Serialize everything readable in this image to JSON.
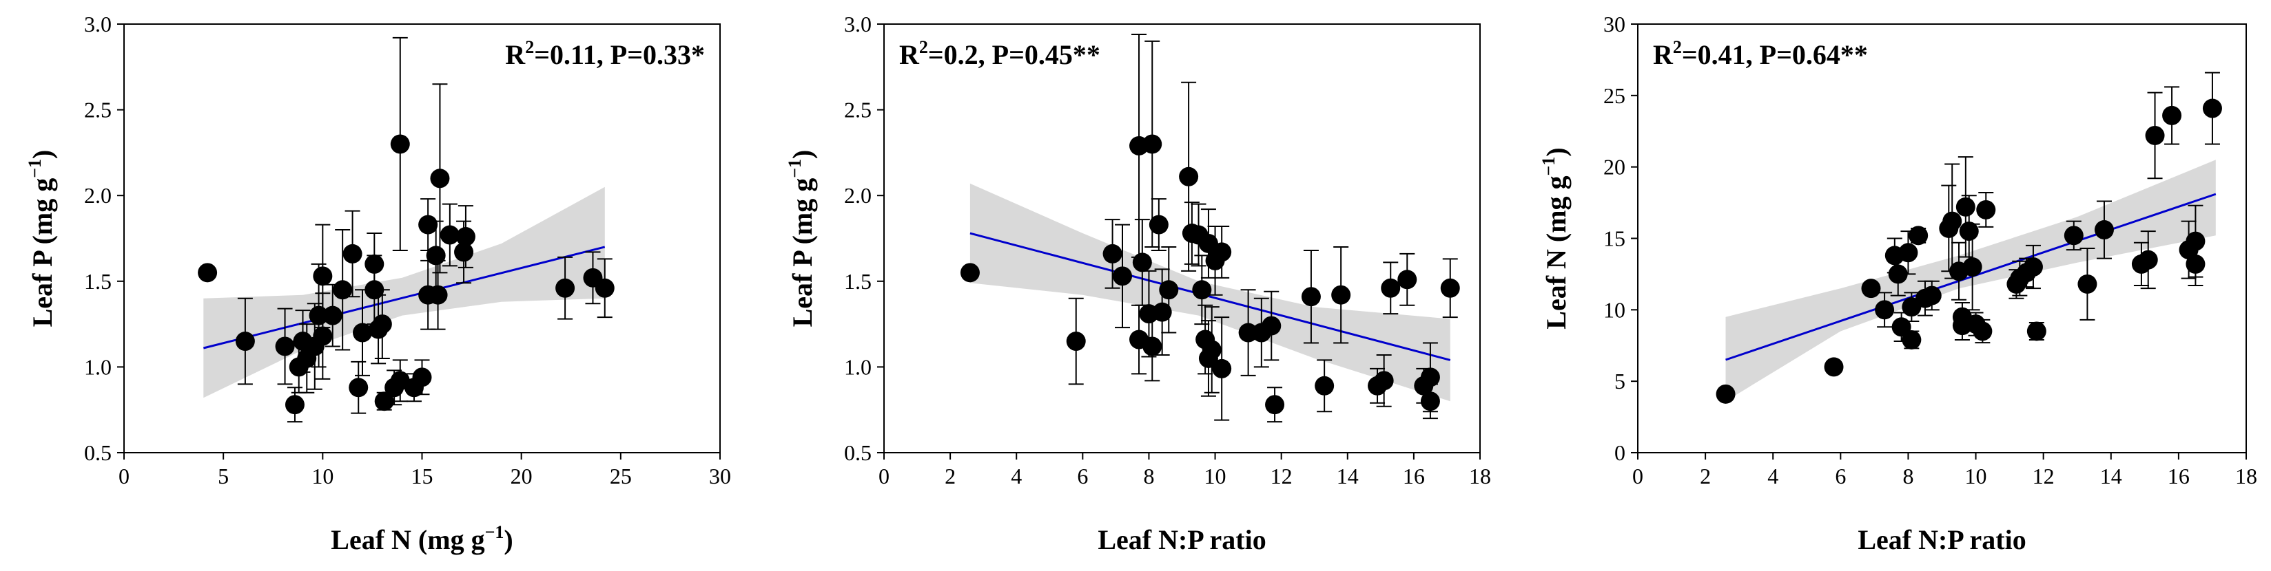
{
  "colors": {
    "point": "#000000",
    "fit_line": "#0000cc",
    "confidence_band": "#d9d9d9",
    "axis": "#000000"
  },
  "chart_data": [
    {
      "type": "scatter",
      "id": "leafN-vs-leafP",
      "xlabel_main": "Leaf N (mg g",
      "xlabel_sup": "−1",
      "xlabel_end": ")",
      "ylabel_main": "Leaf P (mg g",
      "ylabel_sup": "−1",
      "ylabel_end": ")",
      "stat": {
        "r_prefix": "R",
        "r_sup": "2",
        "text": "=0.11, P=0.33*",
        "position": "top-right"
      },
      "xlim": [
        0,
        30
      ],
      "ylim": [
        0.5,
        3.0
      ],
      "xticks": [
        0,
        5,
        10,
        15,
        20,
        25,
        30
      ],
      "yticks": [
        0.5,
        1.0,
        1.5,
        2.0,
        2.5,
        3.0
      ],
      "xtick_labels": [
        "0",
        "5",
        "10",
        "15",
        "20",
        "25",
        "30"
      ],
      "ytick_labels": [
        "0.5",
        "1.0",
        "1.5",
        "2.0",
        "2.5",
        "3.0"
      ],
      "fit": {
        "x": [
          4.0,
          24.2
        ],
        "y": [
          1.11,
          1.7
        ]
      },
      "band": {
        "x": [
          4.0,
          9.0,
          14.0,
          19.0,
          24.2
        ],
        "upper": [
          1.4,
          1.42,
          1.52,
          1.72,
          2.05
        ],
        "lower": [
          0.82,
          1.1,
          1.3,
          1.38,
          1.4
        ]
      },
      "points": [
        {
          "x": 4.2,
          "y": 1.55,
          "err": 0
        },
        {
          "x": 6.1,
          "y": 1.15,
          "err": 0.25
        },
        {
          "x": 8.1,
          "y": 1.12,
          "err": 0.22
        },
        {
          "x": 8.6,
          "y": 0.78,
          "err": 0.1
        },
        {
          "x": 8.8,
          "y": 1.0,
          "err": 0.15
        },
        {
          "x": 9.0,
          "y": 1.15,
          "err": 0.18
        },
        {
          "x": 9.2,
          "y": 1.05,
          "err": 0.2
        },
        {
          "x": 9.6,
          "y": 1.12,
          "err": 0.25
        },
        {
          "x": 9.8,
          "y": 1.3,
          "err": 0.3
        },
        {
          "x": 10.0,
          "y": 1.53,
          "err": 0.3
        },
        {
          "x": 10.0,
          "y": 1.18,
          "err": 0.25
        },
        {
          "x": 10.5,
          "y": 1.3,
          "err": 0.18
        },
        {
          "x": 11.0,
          "y": 1.45,
          "err": 0.35
        },
        {
          "x": 11.5,
          "y": 1.66,
          "err": 0.25
        },
        {
          "x": 11.8,
          "y": 0.88,
          "err": 0.15
        },
        {
          "x": 12.0,
          "y": 1.2,
          "err": 0.25
        },
        {
          "x": 12.6,
          "y": 1.6,
          "err": 0.18
        },
        {
          "x": 12.6,
          "y": 1.45,
          "err": 0.2
        },
        {
          "x": 12.8,
          "y": 1.22,
          "err": 0.2
        },
        {
          "x": 13.0,
          "y": 1.25,
          "err": 0.2
        },
        {
          "x": 13.1,
          "y": 0.8,
          "err": 0.05
        },
        {
          "x": 13.6,
          "y": 0.88,
          "err": 0.1
        },
        {
          "x": 13.9,
          "y": 2.3,
          "err": 0.62
        },
        {
          "x": 13.9,
          "y": 0.92,
          "err": 0.12
        },
        {
          "x": 14.6,
          "y": 0.88,
          "err": 0.08
        },
        {
          "x": 15.0,
          "y": 0.94,
          "err": 0.1
        },
        {
          "x": 15.3,
          "y": 1.83,
          "err": 0.15
        },
        {
          "x": 15.3,
          "y": 1.42,
          "err": 0.2
        },
        {
          "x": 15.7,
          "y": 1.65,
          "err": 0.2
        },
        {
          "x": 15.8,
          "y": 1.42,
          "err": 0.2
        },
        {
          "x": 15.9,
          "y": 2.1,
          "err": 0.55
        },
        {
          "x": 16.4,
          "y": 1.77,
          "err": 0.18
        },
        {
          "x": 17.2,
          "y": 1.76,
          "err": 0.18
        },
        {
          "x": 17.1,
          "y": 1.67,
          "err": 0.18
        },
        {
          "x": 22.2,
          "y": 1.46,
          "err": 0.18
        },
        {
          "x": 23.6,
          "y": 1.52,
          "err": 0.15
        },
        {
          "x": 24.2,
          "y": 1.46,
          "err": 0.17
        }
      ]
    },
    {
      "type": "scatter",
      "id": "np-ratio-vs-leafP",
      "xlabel_main": "Leaf N:P ratio",
      "xlabel_sup": "",
      "xlabel_end": "",
      "ylabel_main": "Leaf P (mg g",
      "ylabel_sup": "−1",
      "ylabel_end": ")",
      "stat": {
        "r_prefix": "R",
        "r_sup": "2",
        "text": "=0.2, P=0.45**",
        "position": "top-left"
      },
      "xlim": [
        0,
        18
      ],
      "ylim": [
        0.5,
        3.0
      ],
      "xticks": [
        0,
        2,
        4,
        6,
        8,
        10,
        12,
        14,
        16,
        18
      ],
      "yticks": [
        0.5,
        1.0,
        1.5,
        2.0,
        2.5,
        3.0
      ],
      "xtick_labels": [
        "0",
        "2",
        "4",
        "6",
        "8",
        "10",
        "12",
        "14",
        "16",
        "18"
      ],
      "ytick_labels": [
        "0.5",
        "1.0",
        "1.5",
        "2.0",
        "2.5",
        "3.0"
      ],
      "fit": {
        "x": [
          2.6,
          17.1
        ],
        "y": [
          1.78,
          1.04
        ]
      },
      "band": {
        "x": [
          2.6,
          6.0,
          9.5,
          13.0,
          17.1
        ],
        "upper": [
          2.07,
          1.78,
          1.5,
          1.35,
          1.28
        ],
        "lower": [
          1.49,
          1.42,
          1.3,
          1.05,
          0.8
        ]
      },
      "points": [
        {
          "x": 2.6,
          "y": 1.55,
          "err": 0
        },
        {
          "x": 5.8,
          "y": 1.15,
          "err": 0.25
        },
        {
          "x": 6.9,
          "y": 1.66,
          "err": 0.2
        },
        {
          "x": 7.2,
          "y": 1.53,
          "err": 0.3
        },
        {
          "x": 7.7,
          "y": 2.29,
          "err": 0.65
        },
        {
          "x": 7.7,
          "y": 1.16,
          "err": 0.2
        },
        {
          "x": 7.8,
          "y": 1.61,
          "err": 0.25
        },
        {
          "x": 8.0,
          "y": 1.31,
          "err": 0.25
        },
        {
          "x": 8.1,
          "y": 2.3,
          "err": 0.6
        },
        {
          "x": 8.1,
          "y": 1.12,
          "err": 0.2
        },
        {
          "x": 8.3,
          "y": 1.83,
          "err": 0.15
        },
        {
          "x": 8.4,
          "y": 1.32,
          "err": 0.25
        },
        {
          "x": 8.6,
          "y": 1.45,
          "err": 0.25
        },
        {
          "x": 9.2,
          "y": 2.11,
          "err": 0.55
        },
        {
          "x": 9.3,
          "y": 1.78,
          "err": 0.18
        },
        {
          "x": 9.5,
          "y": 1.77,
          "err": 0.18
        },
        {
          "x": 9.6,
          "y": 1.45,
          "err": 0.2
        },
        {
          "x": 9.7,
          "y": 1.16,
          "err": 0.2
        },
        {
          "x": 9.8,
          "y": 1.72,
          "err": 0.2
        },
        {
          "x": 9.8,
          "y": 1.05,
          "err": 0.22
        },
        {
          "x": 9.9,
          "y": 1.1,
          "err": 0.25
        },
        {
          "x": 10.0,
          "y": 1.62,
          "err": 0.2
        },
        {
          "x": 10.2,
          "y": 1.67,
          "err": 0.15
        },
        {
          "x": 10.2,
          "y": 0.99,
          "err": 0.3
        },
        {
          "x": 11.0,
          "y": 1.2,
          "err": 0.25
        },
        {
          "x": 11.4,
          "y": 1.2,
          "err": 0.2
        },
        {
          "x": 11.7,
          "y": 1.24,
          "err": 0.2
        },
        {
          "x": 11.8,
          "y": 0.78,
          "err": 0.1
        },
        {
          "x": 12.9,
          "y": 1.41,
          "err": 0.27
        },
        {
          "x": 13.3,
          "y": 0.89,
          "err": 0.15
        },
        {
          "x": 13.8,
          "y": 1.42,
          "err": 0.28
        },
        {
          "x": 14.9,
          "y": 0.89,
          "err": 0.1
        },
        {
          "x": 15.1,
          "y": 0.92,
          "err": 0.15
        },
        {
          "x": 15.3,
          "y": 1.46,
          "err": 0.15
        },
        {
          "x": 15.8,
          "y": 1.51,
          "err": 0.15
        },
        {
          "x": 16.3,
          "y": 0.89,
          "err": 0.1
        },
        {
          "x": 16.5,
          "y": 0.8,
          "err": 0.1
        },
        {
          "x": 16.5,
          "y": 0.94,
          "err": 0.2
        },
        {
          "x": 17.1,
          "y": 1.46,
          "err": 0.17
        }
      ]
    },
    {
      "type": "scatter",
      "id": "np-ratio-vs-leafN",
      "xlabel_main": "Leaf N:P ratio",
      "xlabel_sup": "",
      "xlabel_end": "",
      "ylabel_main": "Leaf N (mg g",
      "ylabel_sup": "−1",
      "ylabel_end": ")",
      "stat": {
        "r_prefix": "R",
        "r_sup": "2",
        "text": "=0.41, P=0.64**",
        "position": "top-left"
      },
      "xlim": [
        0,
        18
      ],
      "ylim": [
        0,
        30
      ],
      "xticks": [
        0,
        2,
        4,
        6,
        8,
        10,
        12,
        14,
        16,
        18
      ],
      "yticks": [
        0,
        5,
        10,
        15,
        20,
        25,
        30
      ],
      "xtick_labels": [
        "0",
        "2",
        "4",
        "6",
        "8",
        "10",
        "12",
        "14",
        "16",
        "18"
      ],
      "ytick_labels": [
        "0",
        "5",
        "10",
        "15",
        "20",
        "25",
        "30"
      ],
      "fit": {
        "x": [
          2.6,
          17.1
        ],
        "y": [
          6.5,
          18.1
        ]
      },
      "band": {
        "x": [
          2.6,
          6.0,
          9.5,
          13.0,
          17.1
        ],
        "upper": [
          9.5,
          11.5,
          13.8,
          16.5,
          20.5
        ],
        "lower": [
          3.6,
          8.5,
          11.5,
          13.3,
          15.2
        ]
      },
      "points": [
        {
          "x": 2.6,
          "y": 4.1,
          "err": 0
        },
        {
          "x": 5.8,
          "y": 6.0,
          "err": 0
        },
        {
          "x": 6.9,
          "y": 11.5,
          "err": 0
        },
        {
          "x": 7.3,
          "y": 10.0,
          "err": 1.2
        },
        {
          "x": 7.6,
          "y": 13.8,
          "err": 1.2
        },
        {
          "x": 7.7,
          "y": 12.5,
          "err": 1.5
        },
        {
          "x": 7.8,
          "y": 8.8,
          "err": 1.0
        },
        {
          "x": 8.0,
          "y": 14.0,
          "err": 1.5
        },
        {
          "x": 8.1,
          "y": 10.2,
          "err": 1.0
        },
        {
          "x": 8.1,
          "y": 7.9,
          "err": 0.6
        },
        {
          "x": 8.3,
          "y": 15.2,
          "err": 0.5
        },
        {
          "x": 8.5,
          "y": 10.8,
          "err": 1.2
        },
        {
          "x": 8.7,
          "y": 11.0,
          "err": 1.0
        },
        {
          "x": 9.2,
          "y": 15.7,
          "err": 3.0
        },
        {
          "x": 9.3,
          "y": 16.2,
          "err": 4.0
        },
        {
          "x": 9.5,
          "y": 12.7,
          "err": 2.0
        },
        {
          "x": 9.6,
          "y": 9.5,
          "err": 1.0
        },
        {
          "x": 9.6,
          "y": 8.9,
          "err": 1.0
        },
        {
          "x": 9.7,
          "y": 17.2,
          "err": 3.5
        },
        {
          "x": 9.8,
          "y": 15.5,
          "err": 2.5
        },
        {
          "x": 9.9,
          "y": 13.0,
          "err": 3.0
        },
        {
          "x": 10.0,
          "y": 9.0,
          "err": 0.8
        },
        {
          "x": 10.2,
          "y": 8.5,
          "err": 0.8
        },
        {
          "x": 10.3,
          "y": 17.0,
          "err": 1.2
        },
        {
          "x": 11.2,
          "y": 11.8,
          "err": 1.0
        },
        {
          "x": 11.3,
          "y": 12.2,
          "err": 1.2
        },
        {
          "x": 11.5,
          "y": 12.6,
          "err": 1.0
        },
        {
          "x": 11.7,
          "y": 13.0,
          "err": 1.5
        },
        {
          "x": 11.8,
          "y": 8.5,
          "err": 0.6
        },
        {
          "x": 12.9,
          "y": 15.2,
          "err": 1.0
        },
        {
          "x": 13.3,
          "y": 11.8,
          "err": 2.5
        },
        {
          "x": 13.8,
          "y": 15.6,
          "err": 2.0
        },
        {
          "x": 14.9,
          "y": 13.2,
          "err": 1.5
        },
        {
          "x": 15.1,
          "y": 13.5,
          "err": 2.0
        },
        {
          "x": 15.3,
          "y": 22.2,
          "err": 3.0
        },
        {
          "x": 15.8,
          "y": 23.6,
          "err": 2.0
        },
        {
          "x": 16.3,
          "y": 14.2,
          "err": 2.0
        },
        {
          "x": 16.5,
          "y": 13.2,
          "err": 1.5
        },
        {
          "x": 16.5,
          "y": 14.8,
          "err": 2.5
        },
        {
          "x": 17.0,
          "y": 24.1,
          "err": 2.5
        }
      ]
    }
  ]
}
